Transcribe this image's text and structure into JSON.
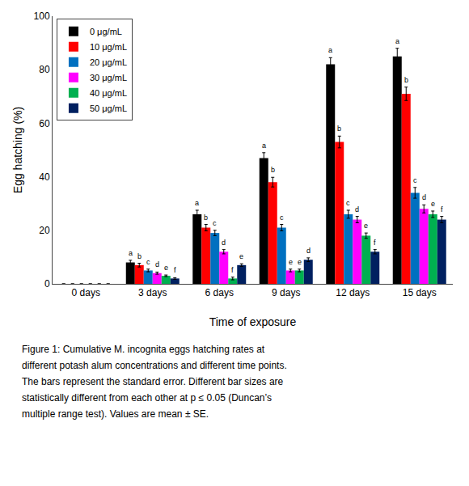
{
  "chart_data": {
    "type": "bar",
    "xlabel": "Time of exposure",
    "ylabel": "Egg hatching (%)",
    "categories": [
      "0 days",
      "3 days",
      "6 days",
      "9 days",
      "12 days",
      "15 days"
    ],
    "series": [
      {
        "name": "0 μg/mL",
        "color": "#000000",
        "values": [
          0,
          8,
          26,
          47,
          82,
          85
        ],
        "errors": [
          0,
          0.8,
          1.5,
          2.0,
          2.5,
          3.0
        ],
        "significance": [
          null,
          "a",
          "a",
          "a",
          "a",
          "a"
        ]
      },
      {
        "name": "10 μg/mL",
        "color": "#ff0000",
        "values": [
          0,
          7,
          21,
          38,
          53,
          71
        ],
        "errors": [
          0,
          0.7,
          1.2,
          1.8,
          2.2,
          2.5
        ],
        "significance": [
          null,
          "b",
          "b",
          "b",
          "b",
          "b"
        ]
      },
      {
        "name": "20 μg/mL",
        "color": "#0070c0",
        "values": [
          0,
          5,
          19,
          21,
          26,
          34
        ],
        "errors": [
          0,
          0.5,
          1.0,
          1.2,
          1.5,
          2.0
        ],
        "significance": [
          null,
          "c",
          "c",
          "c",
          "c",
          "c"
        ]
      },
      {
        "name": "30 μg/mL",
        "color": "#ff00ff",
        "values": [
          0,
          4,
          12,
          5,
          24,
          28
        ],
        "errors": [
          0,
          0.4,
          0.8,
          0.5,
          1.2,
          1.5
        ],
        "significance": [
          null,
          "d",
          "d",
          "e",
          "d",
          "d"
        ]
      },
      {
        "name": "40 μg/mL",
        "color": "#00b050",
        "values": [
          0,
          3,
          2,
          5,
          18,
          26
        ],
        "errors": [
          0,
          0.3,
          0.5,
          0.5,
          1.0,
          1.2
        ],
        "significance": [
          null,
          "e",
          "f",
          "e",
          "e",
          "e"
        ]
      },
      {
        "name": "50 μg/mL",
        "color": "#002060",
        "values": [
          0,
          2,
          7,
          9,
          12,
          24
        ],
        "errors": [
          0,
          0.3,
          0.5,
          0.7,
          0.8,
          1.2
        ],
        "significance": [
          null,
          "f",
          "e",
          "d",
          "f",
          "f"
        ]
      }
    ],
    "ylim": [
      0,
      100
    ],
    "yticks": [
      0,
      20,
      40,
      60,
      80,
      100
    ],
    "grid": false,
    "legend": "upper left",
    "annotations": [
      "Figure 1: Cumulative M. incognita eggs hatching rates at",
      "different potash alum concentrations and different time points.",
      "The bars represent the standard error. Different bar sizes are",
      "statistically different from each other at p ≤ 0.05 (Duncan’s",
      "multiple range test). Values are mean ± SE."
    ]
  }
}
